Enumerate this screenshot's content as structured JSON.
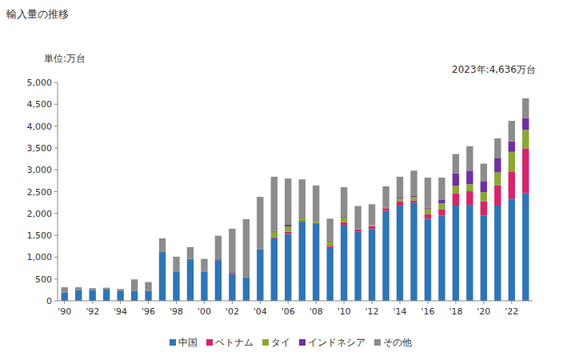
{
  "chart_data": {
    "type": "bar",
    "stacked": true,
    "title": "輸入量の推移",
    "y_axis_label": "単位:万台",
    "annotations": [
      "2023年:4,636万台"
    ],
    "categories": [
      "'90",
      null,
      "'92",
      null,
      "'94",
      null,
      "'96",
      null,
      "'98",
      null,
      "'00",
      null,
      "'02",
      null,
      "'04",
      null,
      "'06",
      null,
      "'08",
      null,
      "'10",
      null,
      "'12",
      null,
      "'14",
      null,
      "'16",
      null,
      "'18",
      null,
      "'20",
      null,
      "'22",
      null
    ],
    "series": [
      {
        "name": "中国",
        "color": "#2e75b6",
        "values": [
          190,
          240,
          250,
          270,
          220,
          230,
          230,
          1120,
          660,
          960,
          670,
          930,
          610,
          540,
          1180,
          1430,
          1530,
          1810,
          1760,
          1230,
          1740,
          1580,
          1640,
          2060,
          2180,
          2250,
          1880,
          1950,
          2180,
          2200,
          1950,
          2180,
          2340,
          2460
        ]
      },
      {
        "name": "ベトナム",
        "color": "#d6246a",
        "values": [
          0,
          0,
          0,
          0,
          0,
          0,
          0,
          0,
          0,
          0,
          0,
          20,
          30,
          0,
          0,
          20,
          50,
          20,
          20,
          30,
          60,
          60,
          70,
          60,
          100,
          50,
          100,
          140,
          280,
          310,
          330,
          460,
          610,
          1030
        ]
      },
      {
        "name": "タイ",
        "color": "#8aa832",
        "values": [
          0,
          0,
          0,
          0,
          0,
          0,
          0,
          0,
          0,
          0,
          0,
          0,
          0,
          0,
          0,
          130,
          120,
          80,
          60,
          100,
          100,
          10,
          20,
          20,
          60,
          80,
          130,
          140,
          170,
          160,
          210,
          300,
          460,
          420
        ]
      },
      {
        "name": "インドネシア",
        "color": "#7030a0",
        "values": [
          0,
          0,
          0,
          0,
          0,
          0,
          0,
          0,
          0,
          0,
          0,
          0,
          0,
          0,
          0,
          20,
          40,
          20,
          10,
          20,
          20,
          0,
          0,
          10,
          20,
          20,
          20,
          80,
          290,
          310,
          250,
          320,
          240,
          270
        ]
      },
      {
        "name": "その他",
        "color": "#8c8c8c",
        "values": [
          120,
          70,
          40,
          30,
          50,
          260,
          200,
          310,
          350,
          270,
          290,
          540,
          1010,
          1330,
          1200,
          1240,
          1060,
          850,
          790,
          500,
          680,
          520,
          480,
          470,
          480,
          580,
          690,
          510,
          440,
          560,
          400,
          460,
          470,
          456
        ]
      }
    ],
    "ylim": [
      0,
      5000
    ],
    "yticks": [
      0,
      500,
      {
        "value": 1000,
        "label": "1,000"
      },
      {
        "value": 1500,
        "label": "1,500"
      },
      {
        "value": 2000,
        "label": "2,000"
      },
      {
        "value": 2500,
        "label": "2,500"
      },
      {
        "value": 3000,
        "label": "3,000"
      },
      {
        "value": 3500,
        "label": "3,500"
      },
      {
        "value": 4000,
        "label": "4,000"
      },
      {
        "value": 4500,
        "label": "4,500"
      },
      {
        "value": 5000,
        "label": "5,000"
      }
    ],
    "grid": false,
    "legend": "bottom"
  }
}
